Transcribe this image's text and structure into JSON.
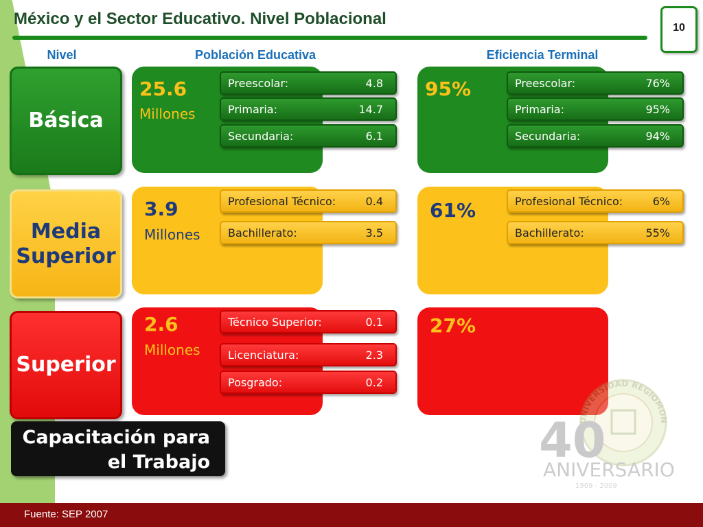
{
  "header": {
    "title": "México y el Sector Educativo. Nivel Poblacional",
    "page_number": "10"
  },
  "columns": {
    "nivel": "Nivel",
    "poblacion": "Población Educativa",
    "eficiencia": "Eficiencia Terminal"
  },
  "levels": {
    "basica": {
      "label": "Básica",
      "population_value": "25.6",
      "population_unit": "Millones",
      "population_items": [
        {
          "label": "Preescolar:",
          "value": "4.8"
        },
        {
          "label": "Primaria:",
          "value": "14.7"
        },
        {
          "label": "Secundaria:",
          "value": "6.1"
        }
      ],
      "efficiency_value": "95%",
      "efficiency_items": [
        {
          "label": "Preescolar:",
          "value": "76%"
        },
        {
          "label": "Primaria:",
          "value": "95%"
        },
        {
          "label": "Secundaria:",
          "value": "94%"
        }
      ]
    },
    "media": {
      "label_line1": "Media",
      "label_line2": "Superior",
      "population_value": "3.9",
      "population_unit": "Millones",
      "population_items": [
        {
          "label": "Profesional Técnico:",
          "value": "0.4"
        },
        {
          "label": "Bachillerato:",
          "value": "3.5"
        }
      ],
      "efficiency_value": "61%",
      "efficiency_items": [
        {
          "label": "Profesional Técnico:",
          "value": "6%"
        },
        {
          "label": "Bachillerato:",
          "value": "55%"
        }
      ]
    },
    "superior": {
      "label": "Superior",
      "population_value": "2.6",
      "population_unit": "Millones",
      "population_items": [
        {
          "label": "Técnico Superior:",
          "value": "0.1"
        },
        {
          "label": "Licenciatura:",
          "value": "2.3"
        },
        {
          "label": "Posgrado:",
          "value": "0.2"
        }
      ],
      "efficiency_value": "27%"
    },
    "capacitacion": {
      "label_line1": "Capacitación para",
      "label_line2": "el Trabajo"
    }
  },
  "logo": {
    "seal_text": "UNIVERSIDAD REGIOMONTANA",
    "big_number": "40",
    "word": "ANIVERSARIO",
    "years": "1969 - 2009"
  },
  "footer": {
    "source": "Fuente:  SEP 2007"
  },
  "colors": {
    "green": "#1f8a1f",
    "yellow": "#fcc21b",
    "red": "#f01212",
    "footer": "#8b0c0c",
    "heading_blue": "#1a6fb8"
  }
}
